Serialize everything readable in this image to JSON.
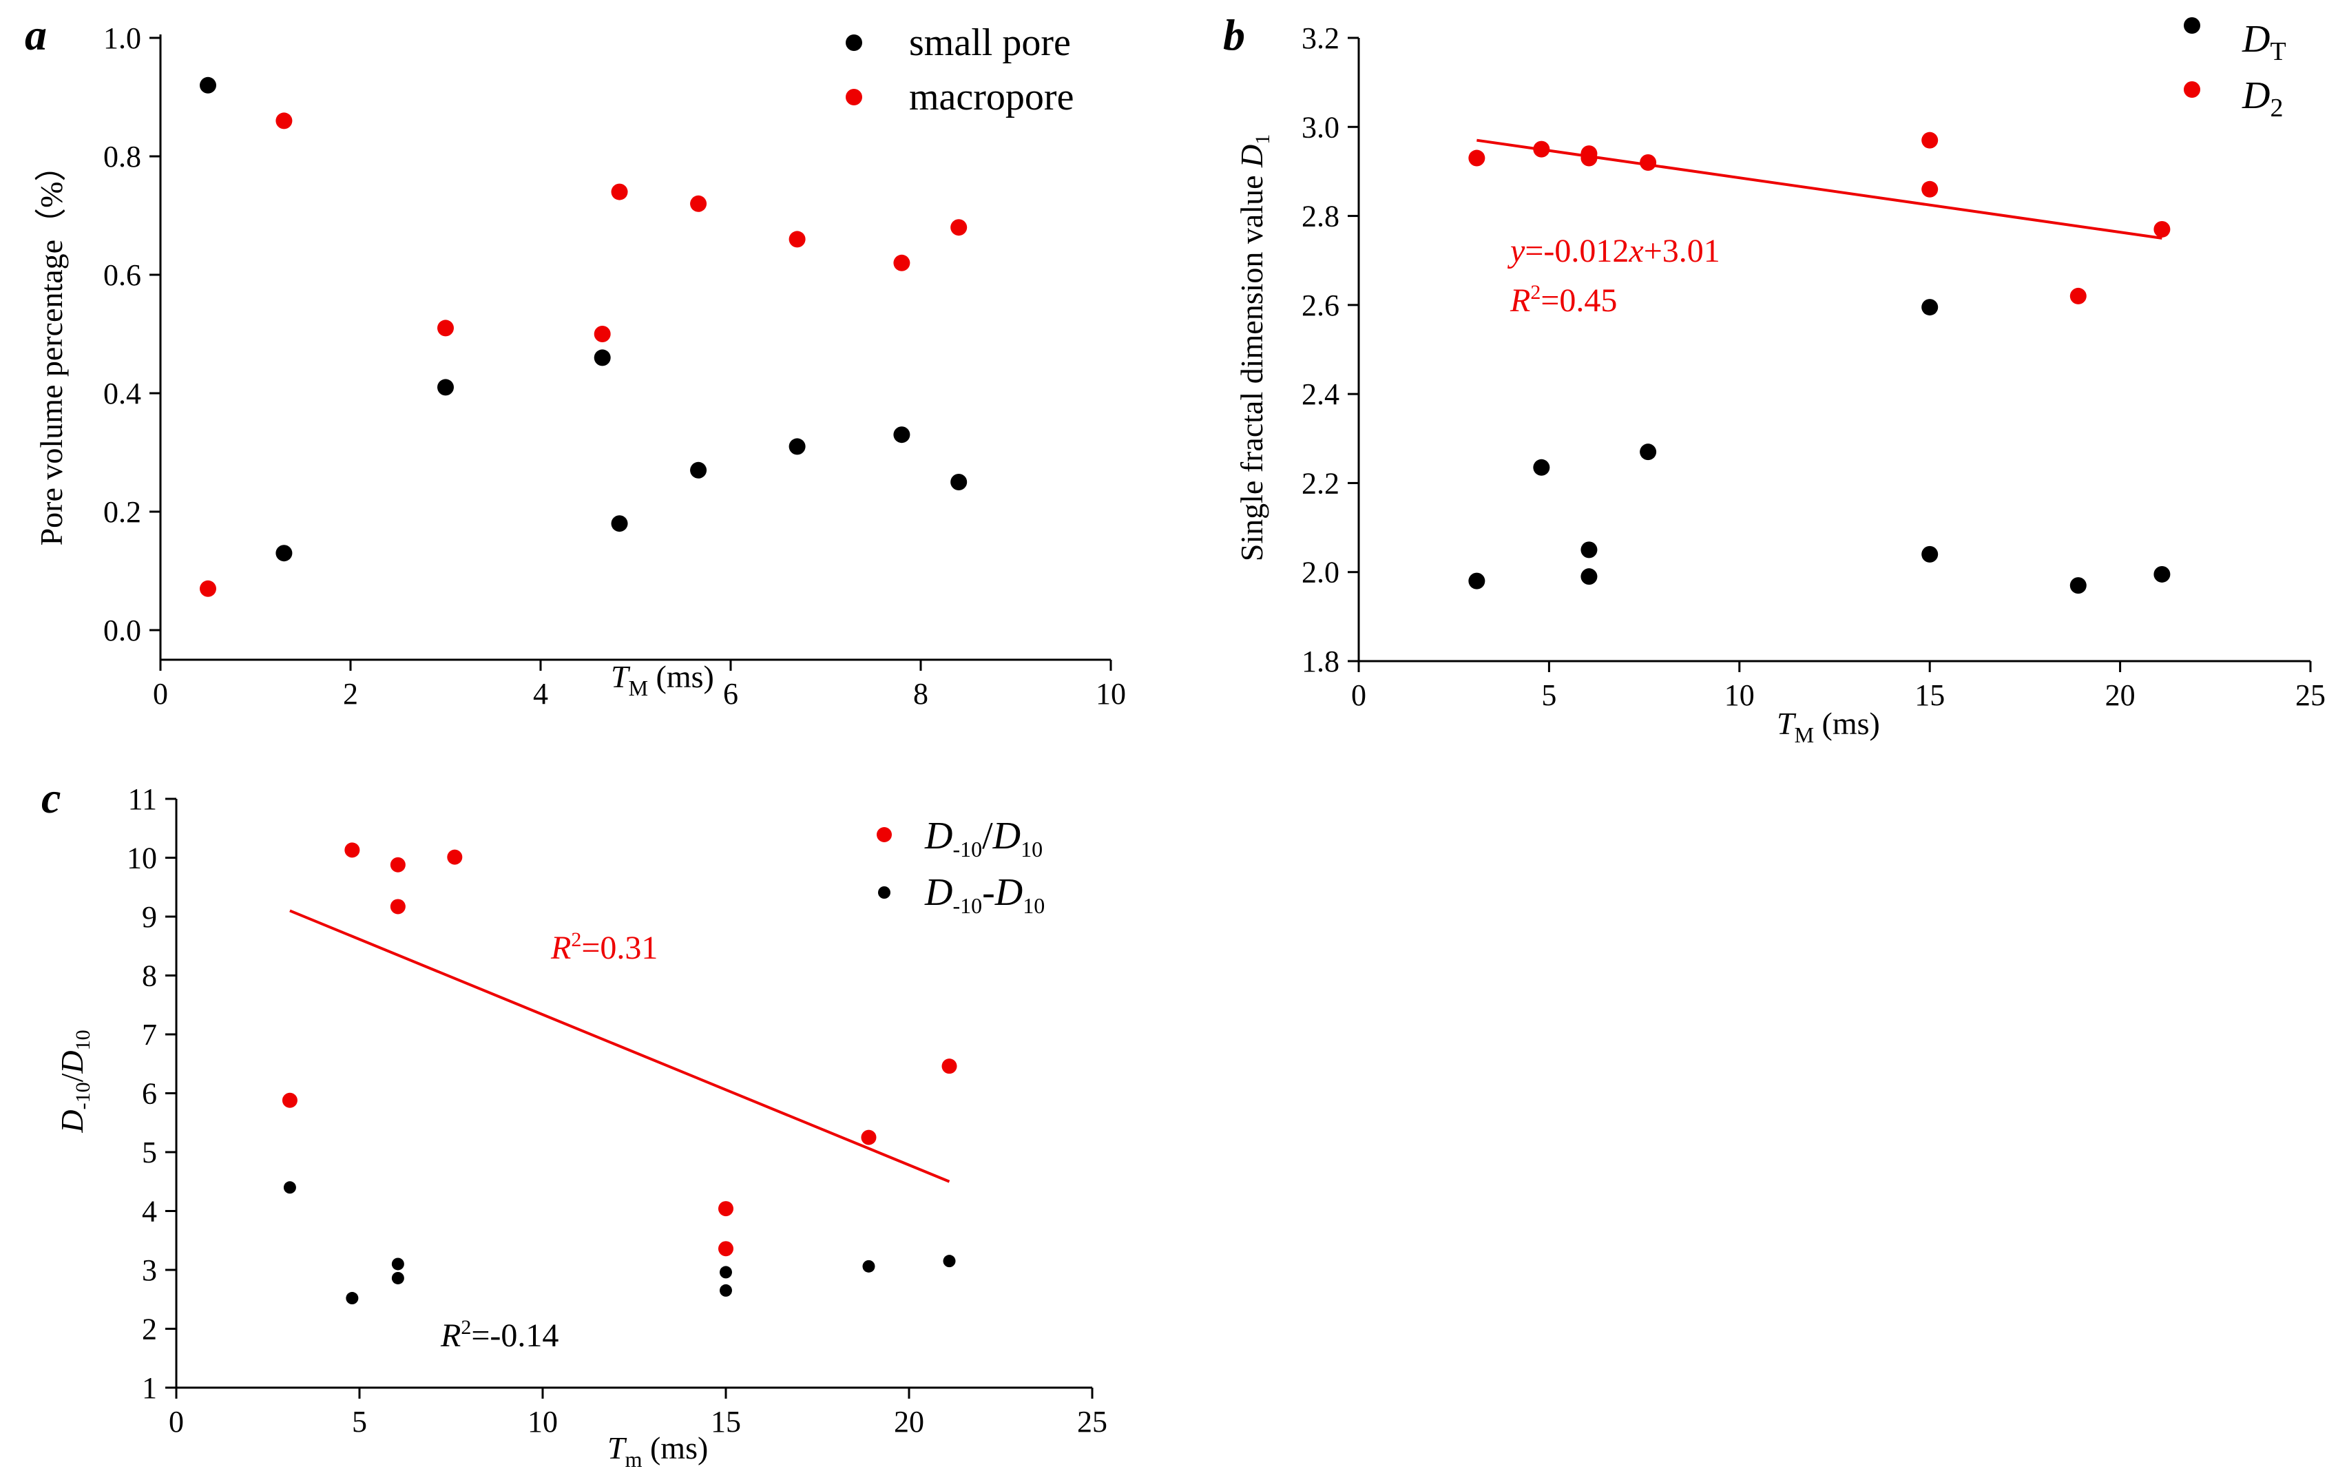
{
  "colors": {
    "black": "#000000",
    "red": "#ee0000"
  },
  "chart_data": [
    {
      "panel": "a",
      "type": "scatter",
      "xlabel": {
        "main": "T",
        "sub": "M",
        "units": " (ms)"
      },
      "ylabel": "Pore volume percentage（%）",
      "xlim": [
        0,
        10
      ],
      "ylim": [
        -0.05,
        1.0
      ],
      "xticks": [
        0,
        2,
        4,
        6,
        8,
        10
      ],
      "xtick_labels": [
        "0",
        "2",
        "4",
        "6",
        "8",
        "10"
      ],
      "yticks": [
        0.0,
        0.2,
        0.4,
        0.6,
        0.8,
        1.0
      ],
      "ytick_labels": [
        "0.0",
        "0.2",
        "0.4",
        "0.6",
        "0.8",
        "1.0"
      ],
      "legend_position": "top-right",
      "series": [
        {
          "name": "small pore",
          "color": "#000000",
          "x": [
            0.5,
            1.3,
            3.0,
            4.65,
            4.83,
            5.66,
            6.7,
            7.8,
            8.4
          ],
          "y": [
            0.92,
            0.13,
            0.41,
            0.46,
            0.18,
            0.27,
            0.31,
            0.33,
            0.25
          ]
        },
        {
          "name": "macropore",
          "color": "#ee0000",
          "x": [
            0.5,
            1.3,
            3.0,
            4.65,
            4.83,
            5.66,
            6.7,
            7.8,
            8.4
          ],
          "y": [
            0.07,
            0.86,
            0.51,
            0.5,
            0.74,
            0.72,
            0.66,
            0.62,
            0.68
          ]
        }
      ]
    },
    {
      "panel": "b",
      "type": "scatter",
      "xlabel": {
        "main": "T",
        "sub": "M",
        "units": " (ms)"
      },
      "ylabel": {
        "main": "Single fractal dimension value ",
        "var": "D",
        "sub": "1"
      },
      "xlim": [
        0,
        25
      ],
      "ylim": [
        1.8,
        3.2
      ],
      "xticks": [
        0,
        5,
        10,
        15,
        20,
        25
      ],
      "xtick_labels": [
        "0",
        "5",
        "10",
        "15",
        "20",
        "25"
      ],
      "yticks": [
        1.8,
        2.0,
        2.2,
        2.4,
        2.6,
        2.8,
        3.0,
        3.2
      ],
      "ytick_labels": [
        "1.8",
        "2.0",
        "2.2",
        "2.4",
        "2.6",
        "2.8",
        "3.0",
        "3.2"
      ],
      "legend_position": "top-right",
      "series": [
        {
          "name": "D",
          "sub": "T",
          "color": "#000000",
          "x": [
            3.1,
            4.8,
            6.05,
            6.05,
            7.6,
            15.0,
            15.0,
            18.9,
            21.1
          ],
          "y": [
            1.98,
            2.235,
            2.05,
            1.99,
            2.27,
            2.04,
            2.595,
            1.97,
            1.995
          ]
        },
        {
          "name": "D",
          "sub": "2",
          "color": "#ee0000",
          "x": [
            3.1,
            4.8,
            6.05,
            6.05,
            7.6,
            15.0,
            15.0,
            18.9,
            21.1
          ],
          "y": [
            2.93,
            2.95,
            2.94,
            2.93,
            2.92,
            2.97,
            2.86,
            2.62,
            2.77
          ]
        }
      ],
      "fit_line": {
        "color": "#ee0000",
        "x": [
          3.1,
          21.1
        ],
        "y": [
          2.97,
          2.75
        ]
      },
      "annotations": [
        {
          "var": "y",
          "rest": "=-0.012",
          "var2": "x",
          "rest2": "+3.01"
        },
        {
          "var": "R",
          "sup": "2",
          "rest": "=0.45"
        }
      ]
    },
    {
      "panel": "c",
      "type": "scatter",
      "xlabel": {
        "main": "T",
        "sub": "m",
        "units": " (ms)"
      },
      "ylabel": {
        "var1": "D",
        "sub1": "-10",
        "slash": "/",
        "var2": "D",
        "sub2": "10"
      },
      "xlim": [
        0,
        25
      ],
      "ylim": [
        1,
        11
      ],
      "xticks": [
        0,
        5,
        10,
        15,
        20,
        25
      ],
      "xtick_labels": [
        "0",
        "5",
        "10",
        "15",
        "20",
        "25"
      ],
      "yticks": [
        1,
        2,
        3,
        4,
        5,
        6,
        7,
        8,
        9,
        10,
        11
      ],
      "ytick_labels": [
        "1",
        "2",
        "3",
        "4",
        "5",
        "6",
        "7",
        "8",
        "9",
        "10",
        "11"
      ],
      "legend_position": "top-right",
      "series": [
        {
          "name": "D-10/D10",
          "color": "#ee0000",
          "legend": {
            "var1": "D",
            "sub1": "-10",
            "sep": "/",
            "var2": "D",
            "sub2": "10"
          },
          "x": [
            3.1,
            4.8,
            6.05,
            6.05,
            7.6,
            15.0,
            15.0,
            18.9,
            21.1
          ],
          "y": [
            5.88,
            10.13,
            9.88,
            9.17,
            10.01,
            4.04,
            3.36,
            5.25,
            6.46
          ]
        },
        {
          "name": "D-10-D10",
          "color": "#000000",
          "legend": {
            "var1": "D",
            "sub1": "-10",
            "sep": "-",
            "var2": "D",
            "sub2": "10"
          },
          "x": [
            3.1,
            4.8,
            6.05,
            6.05,
            15.0,
            15.0,
            18.9,
            21.1
          ],
          "y": [
            4.4,
            2.52,
            3.1,
            2.86,
            2.96,
            2.65,
            3.06,
            3.15
          ]
        }
      ],
      "fit_line": {
        "color": "#ee0000",
        "x": [
          3.1,
          21.1
        ],
        "y": [
          9.1,
          4.5
        ]
      },
      "annotations": [
        {
          "var": "R",
          "sup": "2",
          "rest": "=0.31",
          "color": "#ee0000"
        },
        {
          "var": "R",
          "sup": "2",
          "rest": "=-0.14",
          "color": "#000000"
        }
      ]
    }
  ]
}
